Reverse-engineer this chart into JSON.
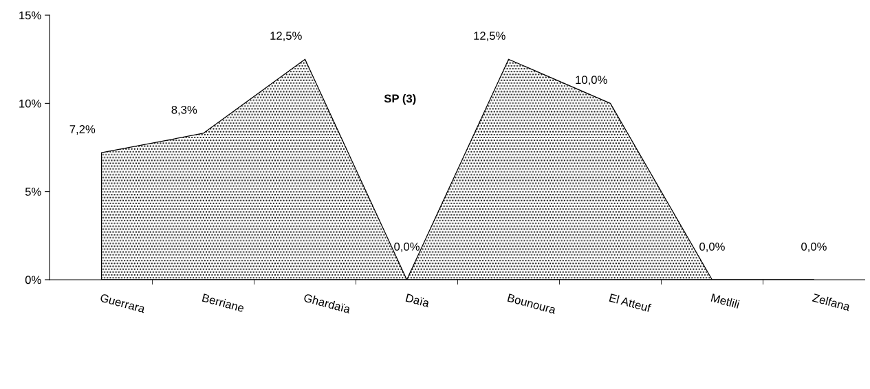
{
  "chart_data": {
    "type": "area",
    "title": "SP (3)",
    "categories": [
      "Guerrara",
      "Berriane",
      "Ghardaïa",
      "Daïa",
      "Bounoura",
      "El Atteuf",
      "Metlili",
      "Zelfana"
    ],
    "series": [
      {
        "color": "#000000",
        "values": [
          7.2,
          8.3,
          12.5,
          0,
          12.5,
          10,
          0,
          0
        ],
        "value_labels": [
          "7,2%",
          "8,3%",
          "12,5%",
          "0,0%",
          "12,5%",
          "10,0%",
          "0,0%",
          "0,0%"
        ]
      }
    ],
    "ylim": [
      0,
      15
    ],
    "yticks": [
      {
        "value": 0,
        "label": "0%"
      },
      {
        "value": 5,
        "label": "5%"
      },
      {
        "value": 10,
        "label": "10%"
      },
      {
        "value": 15,
        "label": "15%"
      }
    ],
    "grid": false,
    "legend": false
  }
}
